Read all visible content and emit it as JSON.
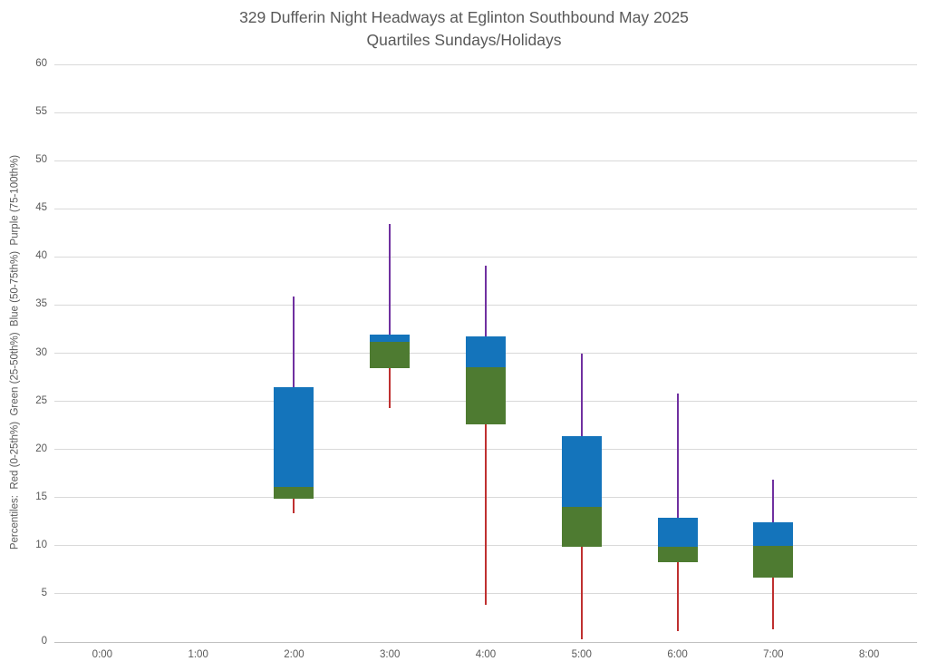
{
  "title": {
    "line1": "329 Dufferin Night Headways at Eglinton Southbound May 2025",
    "line2": "Quartiles Sundays/Holidays"
  },
  "chart_data": {
    "type": "box",
    "title": "329 Dufferin Night Headways at Eglinton Southbound May 2025 Quartiles Sundays/Holidays",
    "ylabel": "Percentiles:  Red (0-25th%)  Green (25-50th%)  Blue (50-75th%)  Purple (75-100th%)",
    "xlabel": "",
    "categories": [
      "0:00",
      "1:00",
      "2:00",
      "3:00",
      "4:00",
      "5:00",
      "6:00",
      "7:00",
      "8:00"
    ],
    "ylim": [
      0,
      60
    ],
    "ytick_step": 5,
    "grid": true,
    "legend": "none",
    "colors": {
      "red_whisker": "#bf3030",
      "green_box": "#4e7b31",
      "blue_box": "#1474bb",
      "purple_whisker": "#7030a0",
      "gridline": "#d9d9d9",
      "text": "#595959"
    },
    "boxes": [
      {
        "category": "2:00",
        "min": 13.4,
        "q1": 14.9,
        "median": 16.1,
        "q3": 26.5,
        "max": 35.9
      },
      {
        "category": "3:00",
        "min": 24.3,
        "q1": 28.4,
        "median": 31.2,
        "q3": 31.9,
        "max": 43.4
      },
      {
        "category": "4:00",
        "min": 3.9,
        "q1": 22.6,
        "median": 28.5,
        "q3": 31.7,
        "max": 39.1
      },
      {
        "category": "5:00",
        "min": 0.3,
        "q1": 9.9,
        "median": 14.0,
        "q3": 21.4,
        "max": 30.0
      },
      {
        "category": "6:00",
        "min": 1.1,
        "q1": 8.3,
        "median": 9.9,
        "q3": 12.9,
        "max": 25.8
      },
      {
        "category": "7:00",
        "min": 1.3,
        "q1": 6.7,
        "median": 10.0,
        "q3": 12.4,
        "max": 16.9
      }
    ]
  }
}
